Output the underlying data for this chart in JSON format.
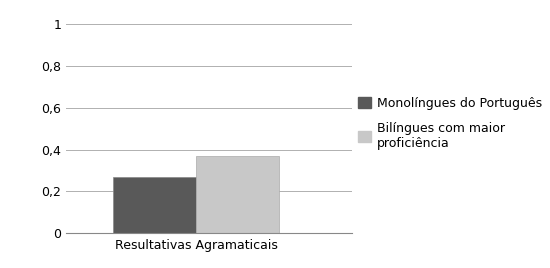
{
  "categories": [
    "Resultativas Agramaticais"
  ],
  "series": [
    {
      "label": "Monolíngues do Português",
      "values": [
        0.27
      ],
      "color": "#595959"
    },
    {
      "label": "Bilíngues com maior\nproficiência",
      "values": [
        0.37
      ],
      "color": "#c8c8c8"
    }
  ],
  "ylim": [
    0,
    1
  ],
  "yticks": [
    0,
    0.2,
    0.4,
    0.6,
    0.8,
    1
  ],
  "ytick_labels": [
    "0",
    "0,2",
    "0,4",
    "0,6",
    "0,8",
    "1"
  ],
  "bar_width": 0.32,
  "bar_gap": 0.0,
  "background_color": "#ffffff",
  "grid_color": "#b0b0b0",
  "tick_fontsize": 9,
  "xlabel_fontsize": 9,
  "legend_fontsize": 9,
  "legend_marker_size": 9
}
